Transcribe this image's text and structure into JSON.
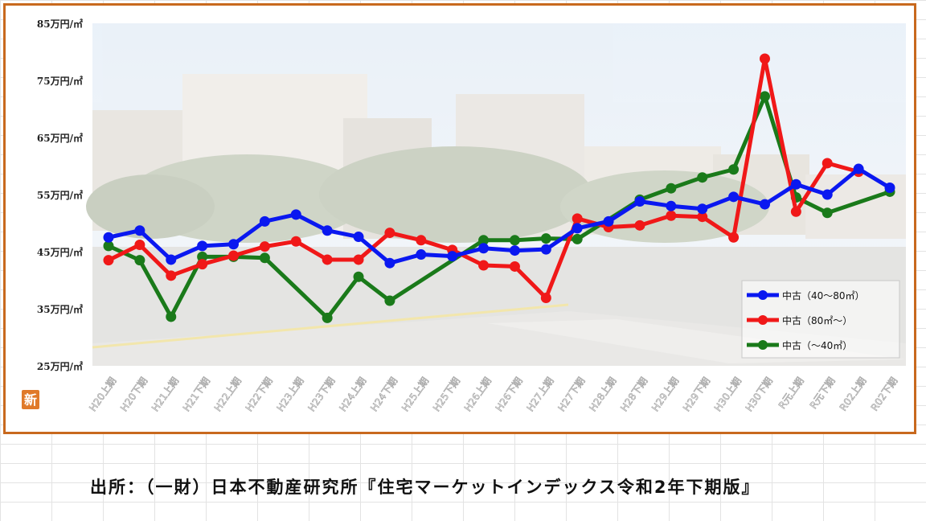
{
  "source_note": "出所：（一財）日本不動産研究所『住宅マーケットインデックス令和2年下期版』",
  "logo_char": "新",
  "colors": {
    "frame": "#c8691e",
    "blue": "#0a18f0",
    "red": "#f01818",
    "green": "#1a7a1a"
  },
  "chart_data": {
    "type": "line",
    "title": "",
    "xlabel": "",
    "ylabel": "",
    "ylim": [
      25,
      85
    ],
    "yticks": [
      25,
      35,
      45,
      55,
      65,
      75,
      85
    ],
    "ytick_labels": [
      "25万円/㎡",
      "35万円/㎡",
      "45万円/㎡",
      "55万円/㎡",
      "65万円/㎡",
      "75万円/㎡",
      "85万円/㎡"
    ],
    "grid": false,
    "legend_position": "bottom-right",
    "categories": [
      "H20上期",
      "H20下期",
      "H21上期",
      "H21下期",
      "H22上期",
      "H22下期",
      "H23上期",
      "H23下期",
      "H24上期",
      "H24下期",
      "H25上期",
      "H25下期",
      "H26上期",
      "H26下期",
      "H27上期",
      "H27下期",
      "H28上期",
      "H28下期",
      "H29上期",
      "H29下期",
      "H30上期",
      "H30下期",
      "R元上期",
      "R元下期",
      "R02上期",
      "R02下期"
    ],
    "series": [
      {
        "name": "中古（40～80㎡）",
        "color": "#0a18f0",
        "values": [
          47.5,
          48.7,
          43.6,
          46.0,
          46.3,
          50.3,
          51.5,
          48.7,
          47.6,
          43.0,
          44.5,
          44.2,
          45.6,
          45.2,
          45.4,
          49.1,
          50.3,
          53.8,
          53.0,
          52.5,
          54.6,
          53.3,
          56.8,
          55.0,
          59.5,
          56.2
        ]
      },
      {
        "name": "中古（80㎡～）",
        "color": "#f01818",
        "values": [
          43.5,
          46.2,
          40.8,
          42.8,
          44.3,
          45.9,
          46.8,
          43.6,
          43.6,
          48.3,
          47.0,
          45.3,
          42.6,
          42.4,
          36.9,
          50.8,
          49.3,
          49.6,
          51.3,
          51.1,
          47.5,
          78.8,
          52.0,
          60.5,
          59.0,
          null
        ]
      },
      {
        "name": "中古（～40㎡）",
        "color": "#1a7a1a",
        "values": [
          46.0,
          43.5,
          33.6,
          44.1,
          44.1,
          43.9,
          null,
          33.4,
          40.6,
          36.4,
          null,
          null,
          47.0,
          47.0,
          47.3,
          47.2,
          null,
          54.1,
          56.1,
          58.0,
          59.4,
          72.2,
          54.5,
          51.8,
          null,
          55.5
        ]
      }
    ]
  }
}
